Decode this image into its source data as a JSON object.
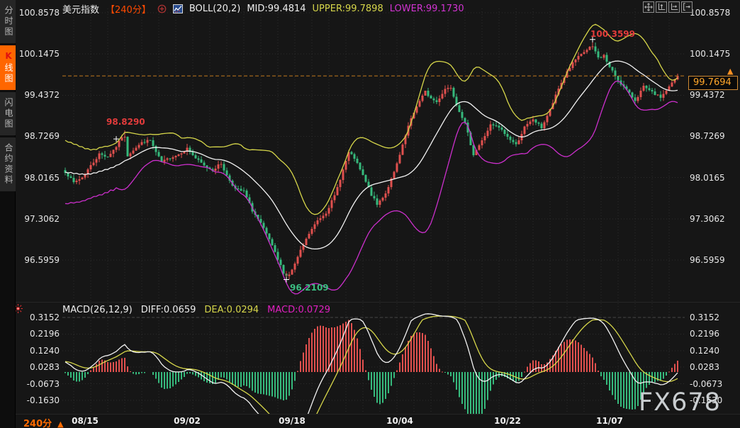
{
  "header": {
    "symbol": "美元指数",
    "period": "【240分】",
    "boll_label": "BOLL(20,2)",
    "mid_label": "MID:99.4814",
    "upper_label": "UPPER:99.7898",
    "lower_label": "LOWER:99.1730"
  },
  "sidebar": {
    "tabs": [
      {
        "label": "分时图",
        "active": false
      },
      {
        "label": "K线图",
        "active": true
      },
      {
        "label": "闪电图",
        "active": false
      },
      {
        "label": "合约资料",
        "active": false
      }
    ]
  },
  "toolbar": {
    "icons": [
      "move-icon",
      "fit-y-axis-icon",
      "fit-x-axis-icon",
      "pan-right-icon"
    ]
  },
  "current_price": {
    "value": "99.7694",
    "numeric": 99.7694,
    "arrow": "▲"
  },
  "annotations": {
    "high": "100.3599",
    "early_high": "98.8290",
    "low": "96.2109"
  },
  "macd_panel": {
    "label": "MACD(26,12,9)",
    "diff_label": "DIFF:0.0659",
    "dea_label": "DEA:0.0294",
    "macd_label": "MACD:0.0729"
  },
  "footer": {
    "period": "240分",
    "arrow": "▲"
  },
  "watermark": "FX678",
  "colors": {
    "accent_orange": "#ff6600",
    "period_red": "#ff4a00",
    "candle_up": "#e0504e",
    "candle_down": "#36b97c",
    "boll_upper": "#d6d64a",
    "boll_mid": "#f2f2f2",
    "boll_lower": "#cc2fcc",
    "macd_diff_line": "#f2f2f2",
    "macd_dea_line": "#d6d64a",
    "macd_value_text": "#e020c0",
    "price_line": "#c27a1f",
    "price_text": "#ffa62a",
    "annotation_red": "#e23b3b",
    "annotation_green": "#3bbd82",
    "grid": "#2c2c2c",
    "axis_text": "#e8e8e8"
  },
  "chart_data": {
    "type": "candlestick",
    "title": "美元指数 240分 K线 + BOLL(20,2) + MACD(26,12,9)",
    "bars_total": 217,
    "ylim": [
      96.0,
      100.93
    ],
    "price_ticks": [
      100.8578,
      100.1475,
      99.4372,
      98.7269,
      98.0165,
      97.3062,
      96.5959
    ],
    "macd_ticks": [
      0.3152,
      0.2196,
      0.124,
      0.0283,
      -0.0673,
      -0.163
    ],
    "last_close": 99.7694,
    "high_point": {
      "bar": 186,
      "price": 100.3599
    },
    "low_point": {
      "bar": 78,
      "price": 96.2109
    },
    "early_high_point": {
      "bar": 21,
      "price": 98.829
    },
    "x_labels": [
      {
        "label": "08/15",
        "bar": 7
      },
      {
        "label": "09/02",
        "bar": 43
      },
      {
        "label": "09/18",
        "bar": 80
      },
      {
        "label": "10/04",
        "bar": 118
      },
      {
        "label": "10/22",
        "bar": 156
      },
      {
        "label": "11/07",
        "bar": 192
      }
    ],
    "close_waypoints": [
      [
        0,
        98.12
      ],
      [
        3,
        97.93
      ],
      [
        6,
        98.02
      ],
      [
        9,
        98.22
      ],
      [
        12,
        98.42
      ],
      [
        15,
        98.38
      ],
      [
        18,
        98.55
      ],
      [
        21,
        98.8
      ],
      [
        22,
        98.4
      ],
      [
        24,
        98.5
      ],
      [
        27,
        98.62
      ],
      [
        30,
        98.66
      ],
      [
        32,
        98.45
      ],
      [
        34,
        98.28
      ],
      [
        37,
        98.36
      ],
      [
        40,
        98.42
      ],
      [
        43,
        98.52
      ],
      [
        46,
        98.35
      ],
      [
        49,
        98.22
      ],
      [
        52,
        98.15
      ],
      [
        55,
        98.26
      ],
      [
        57,
        98.05
      ],
      [
        60,
        97.82
      ],
      [
        63,
        97.78
      ],
      [
        66,
        97.45
      ],
      [
        69,
        97.22
      ],
      [
        72,
        96.95
      ],
      [
        75,
        96.6
      ],
      [
        78,
        96.28
      ],
      [
        80,
        96.42
      ],
      [
        83,
        96.75
      ],
      [
        86,
        97.05
      ],
      [
        89,
        97.28
      ],
      [
        92,
        97.42
      ],
      [
        95,
        97.7
      ],
      [
        98,
        98.15
      ],
      [
        100,
        98.45
      ],
      [
        102,
        98.35
      ],
      [
        105,
        98.05
      ],
      [
        108,
        97.72
      ],
      [
        110,
        97.55
      ],
      [
        113,
        97.75
      ],
      [
        116,
        98.1
      ],
      [
        118,
        98.4
      ],
      [
        121,
        98.9
      ],
      [
        124,
        99.25
      ],
      [
        127,
        99.5
      ],
      [
        129,
        99.38
      ],
      [
        131,
        99.32
      ],
      [
        134,
        99.55
      ],
      [
        136,
        99.58
      ],
      [
        138,
        99.28
      ],
      [
        141,
        98.95
      ],
      [
        144,
        98.42
      ],
      [
        147,
        98.65
      ],
      [
        150,
        98.92
      ],
      [
        153,
        98.88
      ],
      [
        156,
        98.72
      ],
      [
        159,
        98.58
      ],
      [
        162,
        98.88
      ],
      [
        165,
        99.02
      ],
      [
        168,
        98.88
      ],
      [
        171,
        99.18
      ],
      [
        174,
        99.55
      ],
      [
        177,
        99.85
      ],
      [
        180,
        100.05
      ],
      [
        183,
        100.18
      ],
      [
        186,
        100.3
      ],
      [
        188,
        100.08
      ],
      [
        190,
        100.12
      ],
      [
        192,
        99.92
      ],
      [
        195,
        99.7
      ],
      [
        198,
        99.52
      ],
      [
        201,
        99.35
      ],
      [
        204,
        99.58
      ],
      [
        207,
        99.48
      ],
      [
        210,
        99.4
      ],
      [
        213,
        99.58
      ],
      [
        216,
        99.7694
      ]
    ],
    "indicators": {
      "boll": {
        "period": 20,
        "dev": 2,
        "mid": 99.4814,
        "upper": 99.7898,
        "lower": 99.173
      },
      "macd": {
        "fast": 26,
        "slow": 12,
        "signal": 9,
        "diff": 0.0659,
        "dea": 0.0294,
        "macd": 0.0729
      }
    }
  }
}
